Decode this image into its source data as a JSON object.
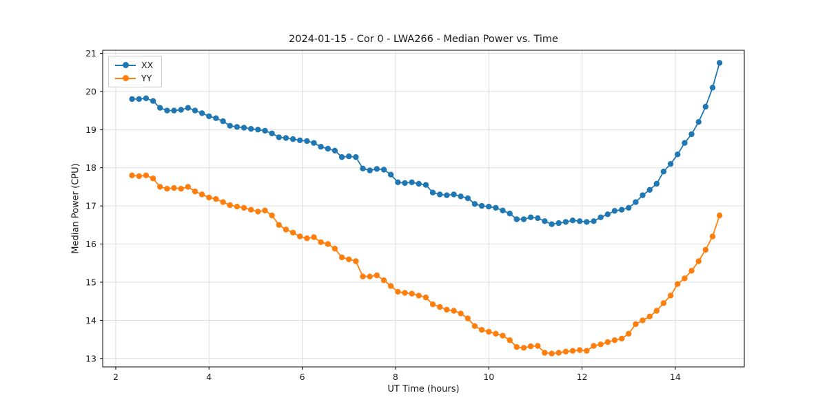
{
  "chart_data": {
    "type": "line",
    "title": "2024-01-15 - Cor 0 - LWA266 - Median Power vs. Time",
    "xlabel": "UT Time (hours)",
    "ylabel": "Median Power (CPU)",
    "xlim": [
      1.72,
      15.48
    ],
    "ylim": [
      12.78,
      21.08
    ],
    "xticks": [
      2,
      4,
      6,
      8,
      10,
      12,
      14
    ],
    "yticks": [
      13,
      14,
      15,
      16,
      17,
      18,
      19,
      20,
      21
    ],
    "grid": true,
    "legend_position": "upper left",
    "x": [
      2.35,
      2.5,
      2.65,
      2.8,
      2.95,
      3.1,
      3.25,
      3.4,
      3.55,
      3.7,
      3.85,
      4.0,
      4.15,
      4.3,
      4.45,
      4.6,
      4.75,
      4.9,
      5.05,
      5.2,
      5.35,
      5.5,
      5.65,
      5.8,
      5.95,
      6.1,
      6.25,
      6.4,
      6.55,
      6.7,
      6.85,
      7.0,
      7.15,
      7.3,
      7.45,
      7.6,
      7.75,
      7.9,
      8.05,
      8.2,
      8.35,
      8.5,
      8.65,
      8.8,
      8.95,
      9.1,
      9.25,
      9.4,
      9.55,
      9.7,
      9.85,
      10.0,
      10.15,
      10.3,
      10.45,
      10.6,
      10.75,
      10.9,
      11.05,
      11.2,
      11.35,
      11.5,
      11.65,
      11.8,
      11.95,
      12.1,
      12.25,
      12.4,
      12.55,
      12.7,
      12.85,
      13.0,
      13.15,
      13.3,
      13.45,
      13.6,
      13.75,
      13.9,
      14.05,
      14.2,
      14.35,
      14.5,
      14.65,
      14.8,
      14.95
    ],
    "series": [
      {
        "name": "XX",
        "color": "#1f77b4",
        "values": [
          19.8,
          19.8,
          19.82,
          19.75,
          19.57,
          19.5,
          19.5,
          19.52,
          19.57,
          19.5,
          19.43,
          19.35,
          19.3,
          19.22,
          19.1,
          19.07,
          19.05,
          19.02,
          19.0,
          18.97,
          18.9,
          18.8,
          18.78,
          18.75,
          18.72,
          18.7,
          18.65,
          18.55,
          18.5,
          18.45,
          18.28,
          18.3,
          18.28,
          17.98,
          17.93,
          17.97,
          17.95,
          17.82,
          17.62,
          17.6,
          17.62,
          17.58,
          17.55,
          17.35,
          17.3,
          17.28,
          17.3,
          17.25,
          17.2,
          17.05,
          17.0,
          16.98,
          16.95,
          16.88,
          16.8,
          16.65,
          16.65,
          16.7,
          16.68,
          16.6,
          16.52,
          16.55,
          16.58,
          16.62,
          16.6,
          16.58,
          16.6,
          16.7,
          16.78,
          16.87,
          16.9,
          16.95,
          17.1,
          17.28,
          17.42,
          17.58,
          17.9,
          18.1,
          18.35,
          18.65,
          18.88,
          19.2,
          19.6,
          20.1,
          20.75
        ]
      },
      {
        "name": "YY",
        "color": "#ff7f0e",
        "values": [
          17.8,
          17.78,
          17.8,
          17.72,
          17.5,
          17.45,
          17.47,
          17.45,
          17.5,
          17.38,
          17.3,
          17.22,
          17.18,
          17.1,
          17.02,
          16.98,
          16.95,
          16.9,
          16.85,
          16.88,
          16.75,
          16.5,
          16.38,
          16.3,
          16.2,
          16.15,
          16.18,
          16.05,
          16.0,
          15.88,
          15.65,
          15.6,
          15.55,
          15.15,
          15.15,
          15.18,
          15.05,
          14.9,
          14.75,
          14.72,
          14.7,
          14.65,
          14.6,
          14.42,
          14.35,
          14.28,
          14.25,
          14.18,
          14.05,
          13.85,
          13.75,
          13.7,
          13.65,
          13.6,
          13.48,
          13.3,
          13.28,
          13.32,
          13.33,
          13.15,
          13.13,
          13.15,
          13.18,
          13.2,
          13.22,
          13.2,
          13.33,
          13.37,
          13.43,
          13.48,
          13.52,
          13.65,
          13.9,
          14.0,
          14.1,
          14.25,
          14.45,
          14.65,
          14.95,
          15.1,
          15.3,
          15.55,
          15.85,
          16.2,
          16.75
        ]
      }
    ]
  }
}
